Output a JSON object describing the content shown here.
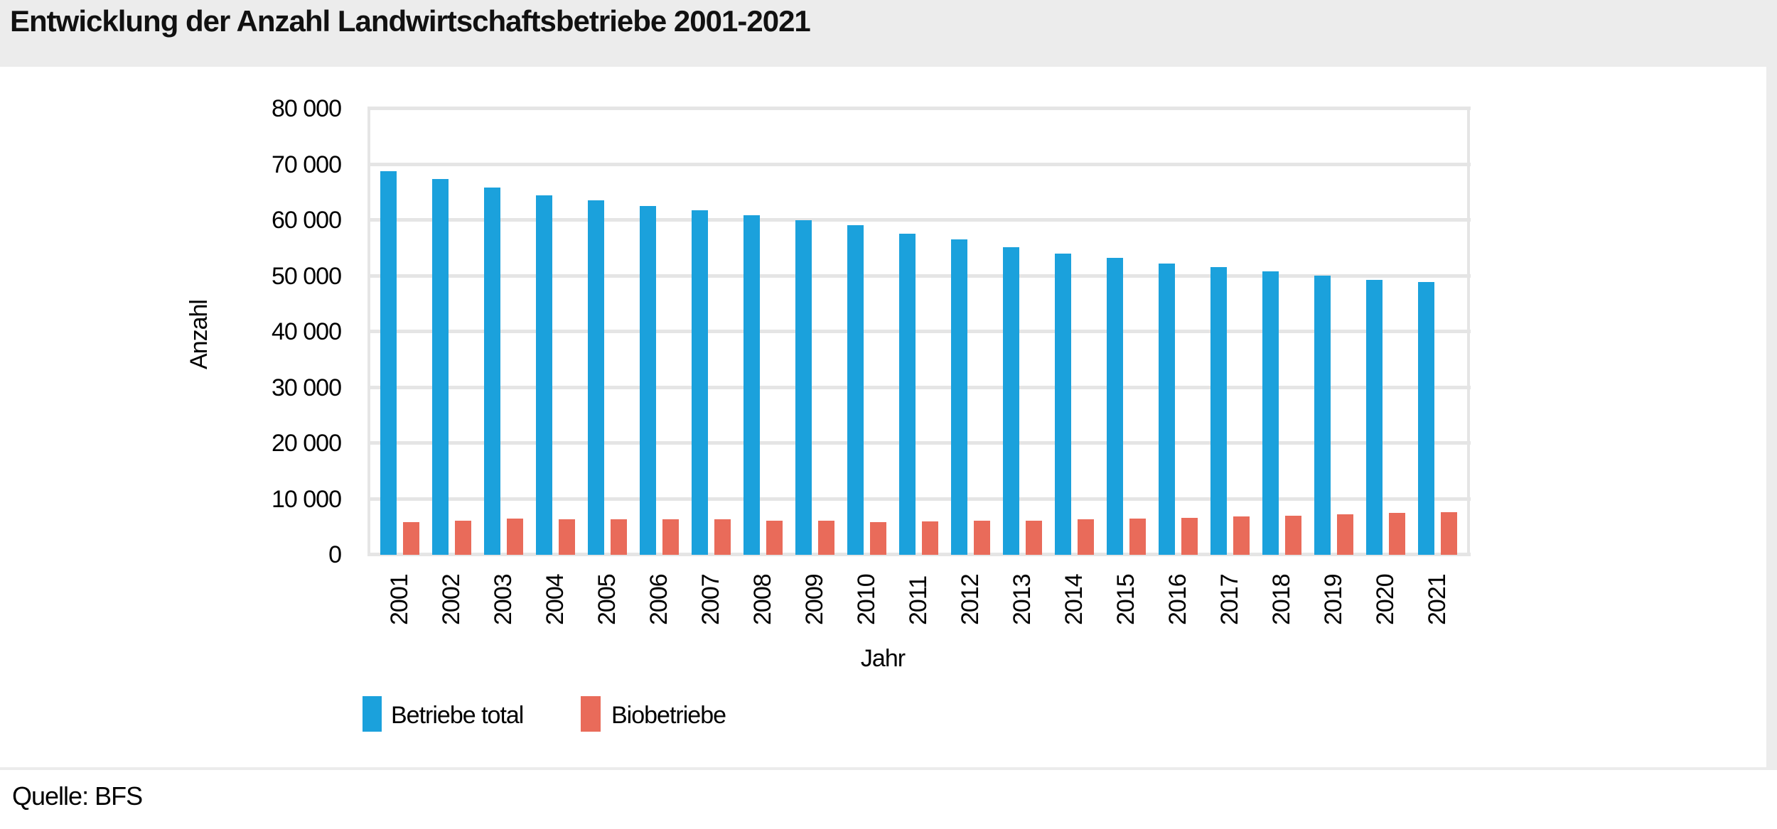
{
  "header": {
    "title": "Entwicklung der Anzahl Landwirtschaftsbetriebe 2001-2021"
  },
  "source": {
    "label": "Quelle: BFS"
  },
  "chart_data": {
    "type": "bar",
    "title": "Entwicklung der Anzahl Landwirtschaftsbetriebe 2001-2021",
    "categories": [
      "2001",
      "2002",
      "2003",
      "2004",
      "2005",
      "2006",
      "2007",
      "2008",
      "2009",
      "2010",
      "2011",
      "2012",
      "2013",
      "2014",
      "2015",
      "2016",
      "2017",
      "2018",
      "2019",
      "2020",
      "2021"
    ],
    "series": [
      {
        "name": "Betriebe total",
        "color": "#1ba1dc",
        "values": [
          68784,
          67421,
          65866,
          64466,
          63627,
          62523,
          61764,
          60894,
          60034,
          59065,
          57620,
          56575,
          55207,
          54046,
          53232,
          52263,
          51620,
          50852,
          50038,
          49363,
          48864
        ]
      },
      {
        "name": "Biobetriebe",
        "color": "#e96b5a",
        "values": [
          5852,
          6114,
          6445,
          6420,
          6420,
          6352,
          6402,
          6111,
          6069,
          5889,
          5953,
          6060,
          6063,
          6348,
          6519,
          6583,
          6906,
          7032,
          7284,
          7561,
          7670
        ]
      }
    ],
    "xlabel": "Jahr",
    "ylabel": "Anzahl",
    "ylim": [
      0,
      80000
    ],
    "ytick_step": 10000,
    "ytick_labels": [
      "0",
      "10 000",
      "20 000",
      "30 000",
      "40 000",
      "50 000",
      "60 000",
      "70 000",
      "80 000"
    ],
    "grid": "horizontal",
    "legend_position": "bottom",
    "bar_orientation": "vertical",
    "xtick_rotation_deg": 90
  },
  "colors": {
    "page_background": "#ffffff",
    "panel_gray": "#ececec",
    "gridline": "#e5e5e5",
    "text": "#000000"
  }
}
